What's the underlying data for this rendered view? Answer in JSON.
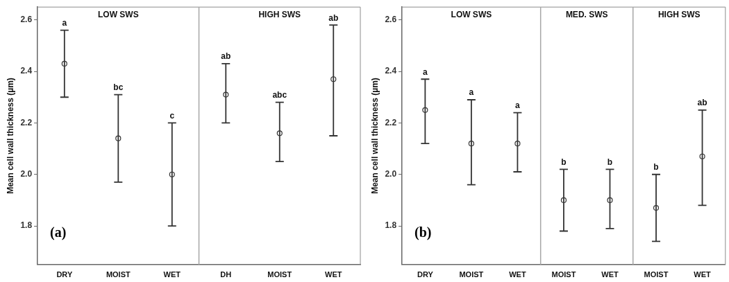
{
  "chart_data": [
    {
      "type": "scatter",
      "ylabel": "Mean cell wall thickness (µm)",
      "categories": [
        "DRY",
        "MOIST",
        "WET",
        "DH",
        "MOIST",
        "WET"
      ],
      "values": [
        2.43,
        2.14,
        2.0,
        2.31,
        2.16,
        2.37
      ],
      "errors": [
        [
          2.3,
          2.56
        ],
        [
          1.97,
          2.31
        ],
        [
          1.8,
          2.2
        ],
        [
          2.2,
          2.43
        ],
        [
          2.05,
          2.28
        ],
        [
          2.15,
          2.58
        ]
      ],
      "color": "#333333",
      "marker": "circle",
      "ylim": [
        1.65,
        2.65
      ],
      "yticks": [
        1.8,
        {
          "value": 2,
          "label": "2.0"
        },
        2.2,
        2.4,
        2.6
      ],
      "grid": false,
      "legend": false,
      "annotations": [
        "LOW SWS",
        "HIGH SWS",
        "(a)",
        "a",
        "bc",
        "c",
        "ab",
        "abc",
        "ab"
      ]
    },
    {
      "type": "scatter",
      "ylabel": "Mean cell wall thickness (µm)",
      "categories": [
        "DRY",
        "MOIST",
        "WET",
        "MOIST",
        "WET",
        "MOIST",
        "WET"
      ],
      "values": [
        2.25,
        2.12,
        2.12,
        1.9,
        1.9,
        1.87,
        2.07
      ],
      "errors": [
        [
          2.12,
          2.37
        ],
        [
          1.96,
          2.29
        ],
        [
          2.01,
          2.24
        ],
        [
          1.78,
          2.02
        ],
        [
          1.79,
          2.02
        ],
        [
          1.74,
          2.0
        ],
        [
          1.88,
          2.25
        ]
      ],
      "color": "#333333",
      "marker": "circle",
      "ylim": [
        1.65,
        2.65
      ],
      "yticks": [
        1.8,
        {
          "value": 2,
          "label": "2.0"
        },
        2.2,
        2.4,
        2.6
      ],
      "grid": false,
      "legend": false,
      "annotations": [
        "LOW SWS",
        "MED. SWS",
        "HIGH SWS",
        "(b)",
        "a",
        "a",
        "a",
        "b",
        "b",
        "b",
        "ab"
      ]
    }
  ]
}
